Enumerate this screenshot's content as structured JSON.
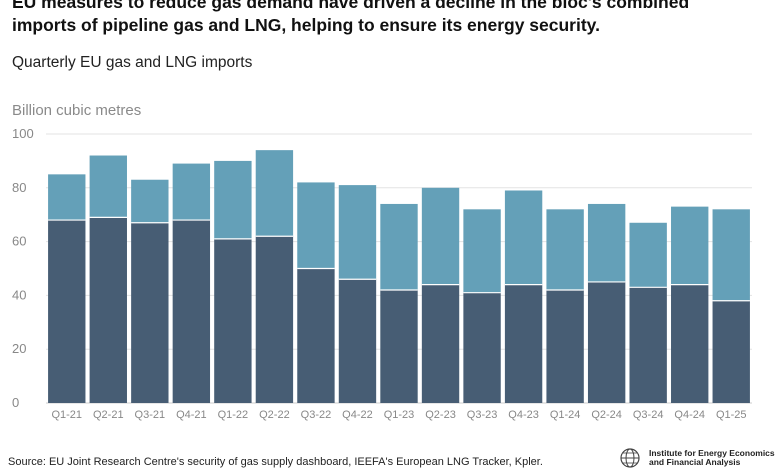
{
  "headline": {
    "line1": "EU measures to reduce gas demand have driven a decline in the bloc's combined",
    "line2": "imports of pipeline gas and LNG, helping to ensure its energy security."
  },
  "subtitle": "Quarterly EU gas and LNG imports",
  "source": "Source: EU Joint Research Centre's security of gas supply dashboard, IEEFA's European LNG Tracker, Kpler.",
  "logo": {
    "line1": "Institute for Energy Economics",
    "line2": "and Financial Analysis",
    "icon": "globe-logo-icon"
  },
  "colors": {
    "pipeline": "#475d74",
    "lng": "#64a0b8",
    "axis": "#cccccc",
    "grid": "#e3e3e3",
    "tick": "#888888"
  },
  "chart_data": {
    "type": "bar",
    "stacked": true,
    "ylabel": "Billion cubic metres",
    "ylim": [
      0,
      100
    ],
    "yticks": [
      0,
      20,
      40,
      60,
      80,
      100
    ],
    "grid": true,
    "categories": [
      "Q1-21",
      "Q2-21",
      "Q3-21",
      "Q4-21",
      "Q1-22",
      "Q2-22",
      "Q3-22",
      "Q4-22",
      "Q1-23",
      "Q2-23",
      "Q3-23",
      "Q4-23",
      "Q1-24",
      "Q2-24",
      "Q3-24",
      "Q4-24",
      "Q1-25"
    ],
    "series": [
      {
        "values": [
          68,
          69,
          67,
          68,
          61,
          62,
          50,
          46,
          42,
          44,
          41,
          44,
          42,
          45,
          43,
          44,
          38
        ]
      },
      {
        "values": [
          17,
          23,
          16,
          21,
          29,
          32,
          32,
          35,
          32,
          36,
          31,
          35,
          30,
          29,
          24,
          29,
          34
        ]
      }
    ]
  }
}
